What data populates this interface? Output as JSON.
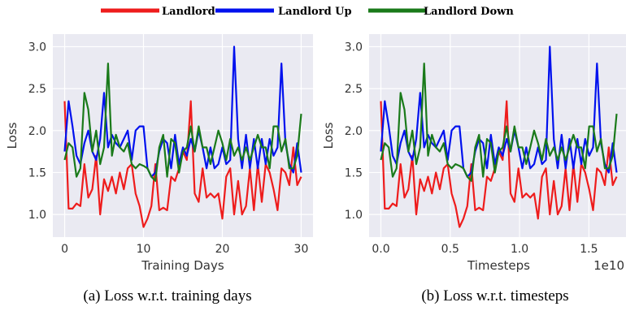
{
  "legend": [
    {
      "name": "Landlord",
      "color": "#ee1c1c"
    },
    {
      "name": "Landlord Up",
      "color": "#0011ee"
    },
    {
      "name": "Landlord Down",
      "color": "#1a7a1a"
    }
  ],
  "chart_data": [
    {
      "type": "line",
      "caption": "(a) Loss w.r.t. training days",
      "xlabel": "Training Days",
      "ylabel": "Loss",
      "x_offset_label": "",
      "xlim": [
        -1.5,
        31.5
      ],
      "ylim": [
        0.73,
        3.15
      ],
      "xticks": [
        {
          "v": 0,
          "label": "0"
        },
        {
          "v": 10,
          "label": "10"
        },
        {
          "v": 20,
          "label": "20"
        },
        {
          "v": 30,
          "label": "30"
        }
      ],
      "yticks": [
        {
          "v": 1.0,
          "label": "1.0"
        },
        {
          "v": 1.5,
          "label": "1.5"
        },
        {
          "v": 2.0,
          "label": "2.0"
        },
        {
          "v": 2.5,
          "label": "2.5"
        },
        {
          "v": 3.0,
          "label": "3.0"
        }
      ],
      "grid": true,
      "x": [
        0,
        0.5,
        1,
        1.5,
        2,
        2.5,
        3,
        3.5,
        4,
        4.5,
        5,
        5.5,
        6,
        6.5,
        7,
        7.5,
        8,
        8.5,
        9,
        9.5,
        10,
        10.5,
        11,
        11.5,
        12,
        12.5,
        13,
        13.5,
        14,
        14.5,
        15,
        15.5,
        16,
        16.5,
        17,
        17.5,
        18,
        18.5,
        19,
        19.5,
        20,
        20.5,
        21,
        21.5,
        22,
        22.5,
        23,
        23.5,
        24,
        24.5,
        25,
        25.5,
        26,
        26.5,
        27,
        27.5,
        28,
        28.5,
        29,
        29.5,
        30
      ],
      "series": [
        {
          "name": "Landlord",
          "color": "#ee1c1c",
          "values": [
            2.35,
            1.07,
            1.07,
            1.13,
            1.1,
            1.6,
            1.2,
            1.3,
            1.7,
            1.0,
            1.42,
            1.28,
            1.45,
            1.25,
            1.5,
            1.3,
            1.55,
            1.6,
            1.25,
            1.1,
            0.85,
            0.95,
            1.1,
            1.6,
            1.05,
            1.08,
            1.05,
            1.45,
            1.4,
            1.55,
            1.75,
            1.65,
            2.35,
            1.25,
            1.15,
            1.55,
            1.2,
            1.25,
            1.2,
            1.25,
            0.95,
            1.45,
            1.55,
            1.0,
            1.4,
            1.0,
            1.1,
            1.55,
            1.05,
            1.6,
            1.15,
            1.6,
            1.5,
            1.3,
            1.05,
            1.55,
            1.5,
            1.35,
            1.8,
            1.35,
            1.45
          ]
        },
        {
          "name": "Landlord Up",
          "color": "#0011ee",
          "values": [
            1.75,
            2.35,
            2.05,
            1.7,
            1.6,
            1.85,
            2.0,
            1.75,
            1.65,
            1.9,
            2.45,
            1.8,
            1.95,
            1.85,
            1.8,
            1.9,
            2.0,
            1.65,
            2.0,
            2.05,
            2.05,
            1.55,
            1.45,
            1.5,
            1.75,
            1.9,
            1.85,
            1.55,
            1.95,
            1.6,
            1.8,
            1.7,
            1.9,
            1.75,
            2.0,
            1.8,
            1.55,
            1.8,
            1.55,
            1.6,
            1.8,
            1.6,
            1.65,
            3.0,
            1.9,
            1.55,
            1.95,
            1.55,
            1.9,
            1.55,
            1.9,
            1.6,
            1.9,
            1.7,
            1.8,
            2.8,
            1.85,
            1.6,
            1.5,
            1.85,
            1.5
          ]
        },
        {
          "name": "Landlord Down",
          "color": "#1a7a1a",
          "values": [
            1.65,
            1.85,
            1.8,
            1.45,
            1.55,
            2.45,
            2.25,
            1.75,
            2.0,
            1.6,
            1.8,
            2.8,
            1.7,
            1.95,
            1.8,
            1.75,
            1.85,
            1.6,
            1.55,
            1.6,
            1.58,
            1.55,
            1.45,
            1.4,
            1.8,
            1.95,
            1.45,
            1.9,
            1.85,
            1.5,
            1.75,
            1.8,
            2.05,
            1.75,
            2.05,
            1.8,
            1.8,
            1.6,
            1.8,
            2.0,
            1.85,
            1.65,
            1.9,
            1.7,
            1.8,
            1.65,
            1.8,
            1.65,
            1.8,
            1.95,
            1.8,
            1.8,
            1.55,
            2.05,
            2.05,
            1.75,
            1.9,
            1.55,
            1.55,
            1.7,
            2.2
          ]
        }
      ]
    },
    {
      "type": "line",
      "caption": "(b) Loss w.r.t. timesteps",
      "xlabel": "Timesteps",
      "ylabel": "Loss",
      "x_offset_label": "1e10",
      "xlim": [
        -0.085,
        1.785
      ],
      "ylim": [
        0.73,
        3.15
      ],
      "xticks": [
        {
          "v": 0,
          "label": "0.0"
        },
        {
          "v": 0.5,
          "label": "0.5"
        },
        {
          "v": 1.0,
          "label": "1.0"
        },
        {
          "v": 1.5,
          "label": "1.5"
        }
      ],
      "yticks": [
        {
          "v": 1.0,
          "label": "1.0"
        },
        {
          "v": 1.5,
          "label": "1.5"
        },
        {
          "v": 2.0,
          "label": "2.0"
        },
        {
          "v": 2.5,
          "label": "2.5"
        },
        {
          "v": 3.0,
          "label": "3.0"
        }
      ],
      "grid": true,
      "x": [
        0.0,
        0.0283,
        0.0567,
        0.085,
        0.1133,
        0.1417,
        0.17,
        0.1983,
        0.2267,
        0.255,
        0.2833,
        0.3117,
        0.34,
        0.3683,
        0.3967,
        0.425,
        0.4533,
        0.4817,
        0.51,
        0.5383,
        0.5667,
        0.595,
        0.6233,
        0.6517,
        0.68,
        0.7083,
        0.7367,
        0.765,
        0.7933,
        0.8217,
        0.85,
        0.8783,
        0.9067,
        0.935,
        0.9633,
        0.9917,
        1.02,
        1.0483,
        1.0767,
        1.105,
        1.1333,
        1.1617,
        1.19,
        1.2183,
        1.2467,
        1.275,
        1.3033,
        1.3317,
        1.36,
        1.3883,
        1.4167,
        1.445,
        1.4733,
        1.5017,
        1.53,
        1.5583,
        1.5867,
        1.615,
        1.6433,
        1.6717,
        1.7
      ],
      "series": [
        {
          "name": "Landlord",
          "color": "#ee1c1c",
          "values": [
            2.35,
            1.07,
            1.07,
            1.13,
            1.1,
            1.6,
            1.2,
            1.3,
            1.7,
            1.0,
            1.42,
            1.28,
            1.45,
            1.25,
            1.5,
            1.3,
            1.55,
            1.6,
            1.25,
            1.1,
            0.85,
            0.95,
            1.1,
            1.6,
            1.05,
            1.08,
            1.05,
            1.45,
            1.4,
            1.55,
            1.75,
            1.65,
            2.35,
            1.25,
            1.15,
            1.55,
            1.2,
            1.25,
            1.2,
            1.25,
            0.95,
            1.45,
            1.55,
            1.0,
            1.4,
            1.0,
            1.1,
            1.55,
            1.05,
            1.6,
            1.15,
            1.6,
            1.5,
            1.3,
            1.05,
            1.55,
            1.5,
            1.35,
            1.8,
            1.35,
            1.45
          ]
        },
        {
          "name": "Landlord Up",
          "color": "#0011ee",
          "values": [
            1.75,
            2.35,
            2.05,
            1.7,
            1.6,
            1.85,
            2.0,
            1.75,
            1.65,
            1.9,
            2.45,
            1.8,
            1.95,
            1.85,
            1.8,
            1.9,
            2.0,
            1.65,
            2.0,
            2.05,
            2.05,
            1.55,
            1.45,
            1.5,
            1.75,
            1.9,
            1.85,
            1.55,
            1.95,
            1.6,
            1.8,
            1.7,
            1.9,
            1.75,
            2.0,
            1.8,
            1.55,
            1.8,
            1.55,
            1.6,
            1.8,
            1.6,
            1.65,
            3.0,
            1.9,
            1.55,
            1.95,
            1.55,
            1.9,
            1.55,
            1.9,
            1.6,
            1.9,
            1.7,
            1.8,
            2.8,
            1.85,
            1.6,
            1.5,
            1.85,
            1.5
          ]
        },
        {
          "name": "Landlord Down",
          "color": "#1a7a1a",
          "values": [
            1.65,
            1.85,
            1.8,
            1.45,
            1.55,
            2.45,
            2.25,
            1.75,
            2.0,
            1.6,
            1.8,
            2.8,
            1.7,
            1.95,
            1.8,
            1.75,
            1.85,
            1.6,
            1.55,
            1.6,
            1.58,
            1.55,
            1.45,
            1.4,
            1.8,
            1.95,
            1.45,
            1.9,
            1.85,
            1.5,
            1.75,
            1.8,
            2.05,
            1.75,
            2.05,
            1.8,
            1.8,
            1.6,
            1.8,
            2.0,
            1.85,
            1.65,
            1.9,
            1.7,
            1.8,
            1.65,
            1.8,
            1.65,
            1.8,
            1.95,
            1.8,
            1.8,
            1.55,
            2.05,
            2.05,
            1.75,
            1.9,
            1.55,
            1.55,
            1.7,
            2.2
          ]
        }
      ]
    }
  ]
}
